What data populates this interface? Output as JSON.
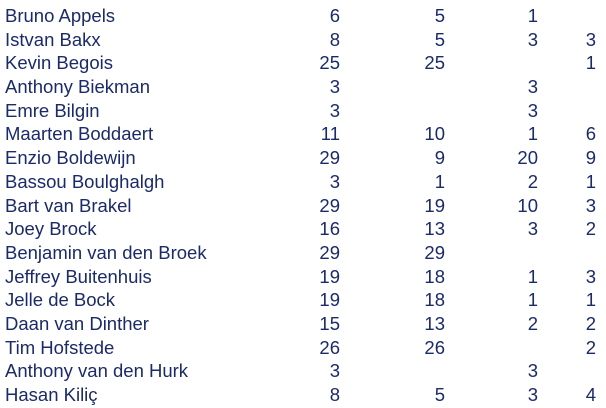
{
  "rows": [
    {
      "name": "Bruno Appels",
      "values": [
        "6",
        "5",
        "1",
        ""
      ]
    },
    {
      "name": "Istvan Bakx",
      "values": [
        "8",
        "5",
        "3",
        "3"
      ]
    },
    {
      "name": "Kevin Begois",
      "values": [
        "25",
        "25",
        "",
        "1"
      ]
    },
    {
      "name": "Anthony Biekman",
      "values": [
        "3",
        "",
        "3",
        ""
      ]
    },
    {
      "name": "Emre Bilgin",
      "values": [
        "3",
        "",
        "3",
        ""
      ]
    },
    {
      "name": "Maarten Boddaert",
      "values": [
        "11",
        "10",
        "1",
        "6"
      ]
    },
    {
      "name": "Enzio Boldewijn",
      "values": [
        "29",
        "9",
        "20",
        "9"
      ]
    },
    {
      "name": "Bassou Boulghalgh",
      "values": [
        "3",
        "1",
        "2",
        "1"
      ]
    },
    {
      "name": "Bart van Brakel",
      "values": [
        "29",
        "19",
        "10",
        "3"
      ]
    },
    {
      "name": "Joey Brock",
      "values": [
        "16",
        "13",
        "3",
        "2"
      ]
    },
    {
      "name": "Benjamin van den Broek",
      "values": [
        "29",
        "29",
        "",
        ""
      ]
    },
    {
      "name": "Jeffrey Buitenhuis",
      "values": [
        "19",
        "18",
        "1",
        "3"
      ]
    },
    {
      "name": "Jelle de Bock",
      "values": [
        "19",
        "18",
        "1",
        "1"
      ]
    },
    {
      "name": "Daan van Dinther",
      "values": [
        "15",
        "13",
        "2",
        "2"
      ]
    },
    {
      "name": "Tim Hofstede",
      "values": [
        "26",
        "26",
        "",
        "2"
      ]
    },
    {
      "name": "Anthony van den Hurk",
      "values": [
        "3",
        "",
        "3",
        ""
      ]
    },
    {
      "name": "Hasan Kiliç",
      "values": [
        "8",
        "5",
        "3",
        "4"
      ]
    }
  ],
  "colors": {
    "text": "#1b2a68",
    "background": "#ffffff"
  }
}
